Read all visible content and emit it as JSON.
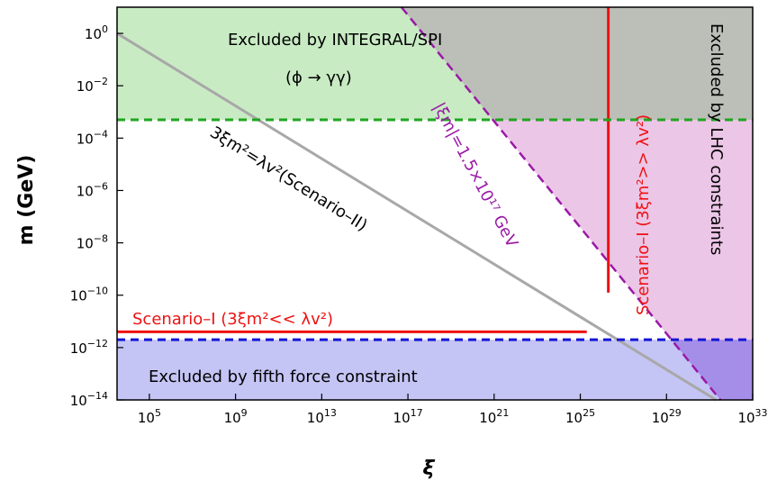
{
  "chart_data": {
    "type": "line",
    "xlabel": "ξ",
    "ylabel": "m (GeV)",
    "xscale": "log",
    "yscale": "log",
    "xlim_log10": [
      3.5,
      33.0
    ],
    "ylim_log10": [
      -14.0,
      1.0
    ],
    "x_ticks_log10": [
      5,
      9,
      13,
      17,
      21,
      25,
      29,
      33
    ],
    "y_ticks_log10": [
      0,
      -2,
      -4,
      -6,
      -8,
      -10,
      -12,
      -14
    ],
    "tick_base": "10",
    "grid": false,
    "colors": {
      "green_region": "#c9ebc4",
      "gray_region": "#bbbfb8",
      "pink_region": "#ecc6e6",
      "blue_region": "#c4c4f5",
      "purple_overlap": "#a58ee8",
      "green_line": "#1fa51f",
      "blue_line": "#1515d6",
      "purple_line": "#9a1aa6",
      "red_line": "#ee1111",
      "gray_line": "#a8a8a8"
    },
    "regions": [
      {
        "name": "INTEGRAL/SPI exclusion",
        "y_min_log10": -3.3,
        "y_max_log10": 1.0
      },
      {
        "name": "fifth force exclusion",
        "y_min_log10": -14.0,
        "y_max_log10": -11.7
      },
      {
        "name": "LHC exclusion",
        "boundary_x_at_y_max_log10": 16.7,
        "boundary_x_at_y_min_log10": 31.5
      }
    ],
    "series": [
      {
        "label": "3ξm²=λv²(Scenario–II)",
        "style": "solid",
        "x_log10": [
          3.5,
          31.3
        ],
        "y_log10": [
          0.0,
          -14.0
        ]
      },
      {
        "label": "|ξm|=1.5×10¹⁷ GeV",
        "style": "dashed",
        "x_log10": [
          16.7,
          31.5
        ],
        "y_log10": [
          1.0,
          -14.0
        ]
      },
      {
        "label": "Scenario–I (3ξm²<< λv²)",
        "style": "solid",
        "x_log10": [
          3.5,
          25.3
        ],
        "y_log10": [
          -11.4,
          -11.4
        ]
      },
      {
        "label": "Scenario–I (3ξm²>> λv²)",
        "style": "solid",
        "x_log10": [
          26.3,
          26.3
        ],
        "y_log10": [
          -9.9,
          1.0
        ]
      },
      {
        "label": "INTEGRAL/SPI boundary",
        "style": "dashed",
        "x_log10": [
          3.5,
          33.0
        ],
        "y_log10": [
          -3.3,
          -3.3
        ]
      },
      {
        "label": "fifth force boundary",
        "style": "dashed",
        "x_log10": [
          3.5,
          33.0
        ],
        "y_log10": [
          -11.7,
          -11.7
        ]
      }
    ],
    "annotations": {
      "integral_1": "Excluded by INTEGRAL/SPI",
      "integral_2": "(ϕ → γγ)",
      "fifth_force": "Excluded by fifth force constraint",
      "lhc": "Excluded by LHC constraints",
      "scenario2": "3ξm²=λv²(Scenario–II)",
      "xi_m": "|ξm|=1.5×10¹⁷ GeV",
      "scenario1_low": "Scenario–I (3ξm²<< λv²)",
      "scenario1_high": "Scenario–I (3ξm²>> λv²)"
    }
  }
}
